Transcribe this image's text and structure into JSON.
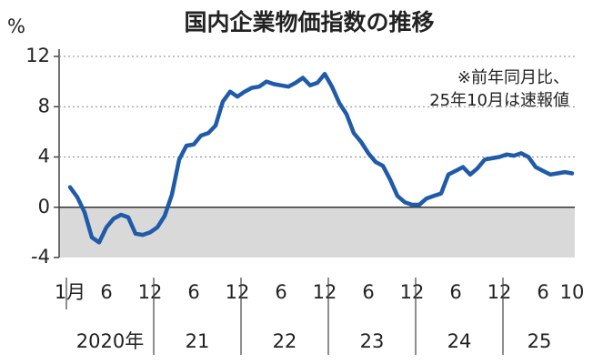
{
  "chart_data": {
    "type": "line",
    "title": "国内企業物価指数の推移",
    "y_unit": "%",
    "annotation": [
      "※前年同月比、",
      "25年10月は速報値"
    ],
    "categories": [
      "1月",
      null,
      null,
      null,
      null,
      "6",
      null,
      null,
      null,
      null,
      null,
      "12",
      null,
      null,
      null,
      null,
      null,
      "6",
      null,
      null,
      null,
      null,
      null,
      "12",
      null,
      null,
      null,
      null,
      null,
      "6",
      null,
      null,
      null,
      null,
      null,
      "12",
      null,
      null,
      null,
      null,
      null,
      "6",
      null,
      null,
      null,
      null,
      null,
      "12",
      null,
      null,
      null,
      null,
      null,
      "6",
      null,
      null,
      null,
      null,
      null,
      "12",
      null,
      null,
      null,
      null,
      null,
      "6",
      null,
      null,
      null,
      "10"
    ],
    "x_groups": [
      "2020年",
      "21",
      "22",
      "23",
      "24",
      "25"
    ],
    "series": [
      {
        "name": "国内企業物価指数",
        "color": "#1f5ba8",
        "values": [
          1.6,
          0.8,
          -0.4,
          -2.4,
          -2.8,
          -1.6,
          -0.9,
          -0.6,
          -0.8,
          -2.1,
          -2.2,
          -2.0,
          -1.6,
          -0.7,
          1.0,
          3.8,
          4.9,
          5.0,
          5.7,
          5.9,
          6.5,
          8.4,
          9.2,
          8.8,
          9.2,
          9.5,
          9.6,
          10.0,
          9.8,
          9.7,
          9.6,
          9.9,
          10.3,
          9.7,
          9.9,
          10.6,
          9.6,
          8.3,
          7.4,
          5.9,
          5.2,
          4.3,
          3.6,
          3.3,
          2.2,
          0.9,
          0.4,
          0.2,
          0.2,
          0.7,
          0.9,
          1.1,
          2.6,
          2.9,
          3.2,
          2.6,
          3.1,
          3.8,
          3.9,
          4.0,
          4.2,
          4.1,
          4.3,
          4.0,
          3.2,
          2.9,
          2.6,
          2.7,
          2.8,
          2.7
        ]
      }
    ],
    "ylim": [
      -4,
      12
    ],
    "yticks": [
      -4,
      0,
      4,
      8,
      12
    ],
    "negative_band_color": "#d9d9d9",
    "grid": true
  }
}
